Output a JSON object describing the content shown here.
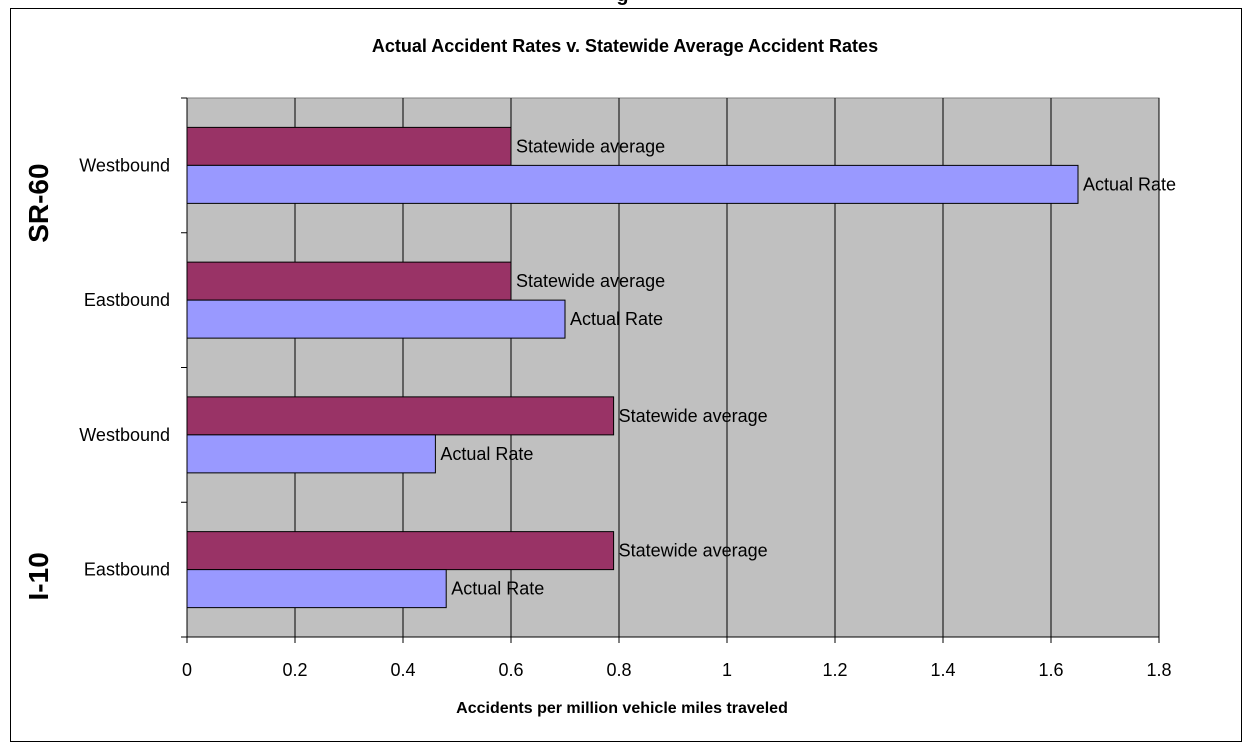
{
  "page": {
    "top_caption": "g"
  },
  "chart_data": {
    "type": "bar",
    "orientation": "horizontal",
    "title": "Actual Accident Rates v. Statewide Average Accident Rates",
    "xlabel": "Accidents per million vehicle miles traveled",
    "ylabel": "",
    "xlim": [
      0,
      1.8
    ],
    "xticks": [
      "0",
      "0.2",
      "0.4",
      "0.6",
      "0.8",
      "1",
      "1.2",
      "1.4",
      "1.6",
      "1.8"
    ],
    "grid": "vertical",
    "plot_background": "#C0C0C0",
    "groups": [
      {
        "name": "SR-60",
        "categories": [
          "Westbound",
          "Eastbound"
        ]
      },
      {
        "name": "I-10",
        "categories": [
          "Westbound",
          "Eastbound"
        ]
      }
    ],
    "categories": [
      "SR-60 Westbound",
      "SR-60 Eastbound",
      "I-10 Westbound",
      "I-10 Eastbound"
    ],
    "series": [
      {
        "name": "Statewide average",
        "color": "#993366",
        "values": [
          0.6,
          0.6,
          0.79,
          0.79
        ],
        "data_label": "Statewide average"
      },
      {
        "name": "Actual Rate",
        "color": "#9999FF",
        "values": [
          1.65,
          0.7,
          0.46,
          0.48
        ],
        "data_label": "Actual Rate"
      }
    ]
  }
}
